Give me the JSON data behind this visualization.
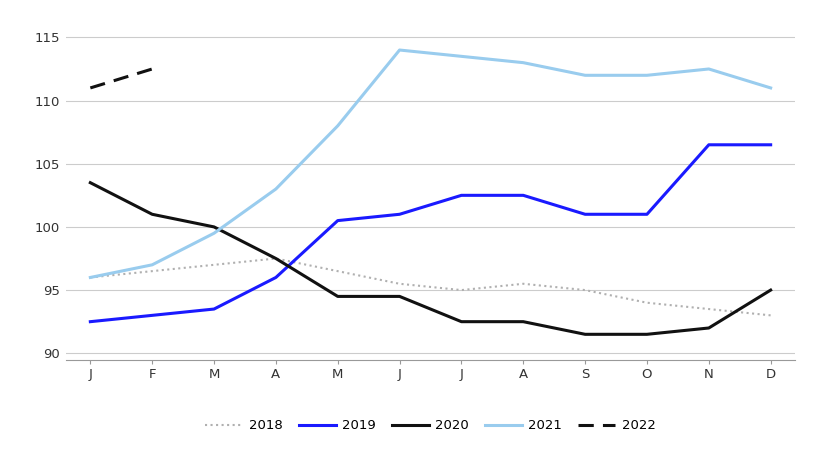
{
  "months": [
    "J",
    "F",
    "M",
    "A",
    "M",
    "J",
    "J",
    "A",
    "S",
    "O",
    "N",
    "D"
  ],
  "series_2018": [
    96.0,
    96.5,
    97.0,
    97.5,
    96.5,
    95.5,
    95.0,
    95.5,
    95.0,
    94.0,
    93.5,
    93.0
  ],
  "series_2019": [
    92.5,
    93.0,
    93.5,
    96.0,
    100.5,
    101.0,
    102.5,
    102.5,
    101.0,
    101.0,
    106.5,
    106.5
  ],
  "series_2020": [
    103.5,
    101.0,
    100.0,
    97.5,
    94.5,
    94.5,
    92.5,
    92.5,
    91.5,
    91.5,
    92.0,
    95.0
  ],
  "series_2021": [
    96.0,
    97.0,
    99.5,
    103.0,
    108.0,
    114.0,
    113.5,
    113.0,
    112.0,
    112.0,
    112.5,
    111.0
  ],
  "series_2022": [
    111.0,
    112.5,
    null,
    null,
    null,
    null,
    null,
    null,
    null,
    null,
    null,
    null
  ],
  "color_2018": "#b0b0b0",
  "color_2019": "#1a1aff",
  "color_2020": "#111111",
  "color_2021": "#99ccee",
  "color_2022": "#111111",
  "ylim": [
    89.5,
    116.5
  ],
  "yticks": [
    90,
    95,
    100,
    105,
    110,
    115
  ],
  "background_color": "#ffffff",
  "grid_color": "#cccccc"
}
